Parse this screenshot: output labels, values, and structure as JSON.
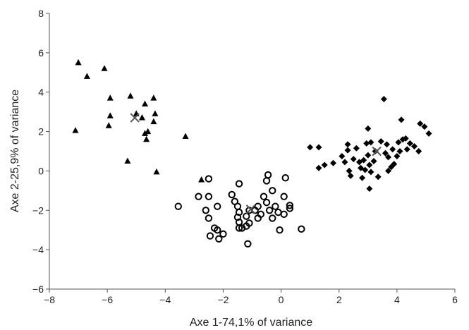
{
  "chart_data": {
    "type": "scatter",
    "xlabel": "Axe 1-74,1% of variance",
    "ylabel": "Axe 2-25,9% of variance",
    "xlim": [
      -8,
      6
    ],
    "ylim": [
      -6,
      8
    ],
    "xticks": [
      -8,
      -6,
      -4,
      -2,
      0,
      2,
      4,
      6
    ],
    "yticks": [
      -6,
      -4,
      -2,
      0,
      2,
      4,
      6,
      8
    ],
    "grid": false,
    "series": [
      {
        "marker": "triangle",
        "color": "#000000",
        "points": [
          [
            -7.0,
            5.5
          ],
          [
            -6.7,
            4.8
          ],
          [
            -6.1,
            5.2
          ],
          [
            -5.9,
            3.7
          ],
          [
            -5.9,
            2.8
          ],
          [
            -5.95,
            2.3
          ],
          [
            -5.2,
            3.8
          ],
          [
            -5.0,
            2.9
          ],
          [
            -4.8,
            2.7
          ],
          [
            -4.7,
            3.4
          ],
          [
            -4.7,
            1.9
          ],
          [
            -4.6,
            2.0
          ],
          [
            -4.65,
            1.6
          ],
          [
            -4.4,
            3.7
          ],
          [
            -4.35,
            2.9
          ],
          [
            -4.4,
            2.5
          ],
          [
            -3.3,
            1.75
          ],
          [
            -7.1,
            2.05
          ],
          [
            -5.3,
            0.5
          ],
          [
            -4.3,
            -0.05
          ],
          [
            -2.75,
            -0.45
          ]
        ]
      },
      {
        "marker": "circle-open",
        "color": "#000000",
        "points": [
          [
            -2.5,
            -0.4
          ],
          [
            -2.85,
            -1.3
          ],
          [
            -2.5,
            -1.3
          ],
          [
            -3.55,
            -1.8
          ],
          [
            -2.6,
            -2.0
          ],
          [
            -2.5,
            -2.4
          ],
          [
            -2.3,
            -2.9
          ],
          [
            -2.45,
            -3.3
          ],
          [
            -2.2,
            -3.0
          ],
          [
            -2.15,
            -3.45
          ],
          [
            -2.0,
            -3.2
          ],
          [
            -2.2,
            -1.8
          ],
          [
            -1.7,
            -1.2
          ],
          [
            -1.6,
            -1.55
          ],
          [
            -1.45,
            -0.65
          ],
          [
            -1.5,
            -1.8
          ],
          [
            -1.45,
            -2.1
          ],
          [
            -1.5,
            -2.35
          ],
          [
            -1.45,
            -2.6
          ],
          [
            -1.45,
            -2.9
          ],
          [
            -1.35,
            -2.9
          ],
          [
            -1.2,
            -2.3
          ],
          [
            -1.1,
            -2.0
          ],
          [
            -1.2,
            -2.8
          ],
          [
            -1.1,
            -2.65
          ],
          [
            -0.9,
            -2.0
          ],
          [
            -0.8,
            -1.8
          ],
          [
            -0.7,
            -2.2
          ],
          [
            -0.8,
            -2.4
          ],
          [
            -0.6,
            -1.3
          ],
          [
            -0.5,
            -1.6
          ],
          [
            -0.4,
            -2.0
          ],
          [
            -0.45,
            -0.2
          ],
          [
            -0.5,
            -0.5
          ],
          [
            -0.3,
            -2.4
          ],
          [
            -0.2,
            -1.8
          ],
          [
            -0.1,
            -2.1
          ],
          [
            0.1,
            -1.3
          ],
          [
            0.1,
            -2.2
          ],
          [
            0.15,
            -0.35
          ],
          [
            0.3,
            -1.75
          ],
          [
            0.3,
            -1.9
          ],
          [
            -0.05,
            -3.0
          ],
          [
            0.7,
            -2.95
          ],
          [
            -1.15,
            -3.7
          ],
          [
            -0.3,
            -1.0
          ]
        ]
      },
      {
        "marker": "diamond",
        "color": "#000000",
        "points": [
          [
            1.0,
            1.2
          ],
          [
            1.3,
            1.2
          ],
          [
            1.3,
            0.15
          ],
          [
            1.5,
            0.3
          ],
          [
            1.8,
            0.4
          ],
          [
            2.1,
            0.75
          ],
          [
            2.2,
            0.45
          ],
          [
            2.3,
            1.05
          ],
          [
            2.3,
            1.35
          ],
          [
            2.35,
            0.0
          ],
          [
            2.4,
            -0.25
          ],
          [
            2.5,
            0.6
          ],
          [
            2.6,
            1.15
          ],
          [
            2.7,
            0.45
          ],
          [
            2.75,
            0.15
          ],
          [
            2.8,
            -0.35
          ],
          [
            2.85,
            0.55
          ],
          [
            2.95,
            1.4
          ],
          [
            3.0,
            2.15
          ],
          [
            3.0,
            0.8
          ],
          [
            3.05,
            0.3
          ],
          [
            3.1,
            1.45
          ],
          [
            3.1,
            -0.05
          ],
          [
            3.2,
            0.5
          ],
          [
            3.25,
            1.0
          ],
          [
            3.35,
            -0.3
          ],
          [
            3.45,
            1.5
          ],
          [
            3.55,
            3.65
          ],
          [
            3.6,
            0.9
          ],
          [
            3.65,
            1.35
          ],
          [
            3.7,
            0.7
          ],
          [
            3.8,
            0.2
          ],
          [
            3.85,
            1.1
          ],
          [
            3.9,
            0.35
          ],
          [
            4.0,
            0.75
          ],
          [
            4.05,
            1.45
          ],
          [
            4.1,
            1.0
          ],
          [
            4.15,
            2.6
          ],
          [
            4.2,
            1.6
          ],
          [
            4.3,
            1.65
          ],
          [
            4.35,
            1.1
          ],
          [
            4.45,
            1.4
          ],
          [
            4.6,
            1.25
          ],
          [
            4.8,
            2.4
          ],
          [
            4.75,
            1.0
          ],
          [
            4.95,
            2.25
          ],
          [
            5.1,
            1.9
          ],
          [
            3.05,
            -0.9
          ],
          [
            3.7,
            0.0
          ],
          [
            2.9,
            0.05
          ]
        ]
      }
    ],
    "centroids": [
      [
        -5.05,
        2.7
      ],
      [
        -1.05,
        -1.95
      ],
      [
        3.3,
        1.0
      ]
    ]
  }
}
